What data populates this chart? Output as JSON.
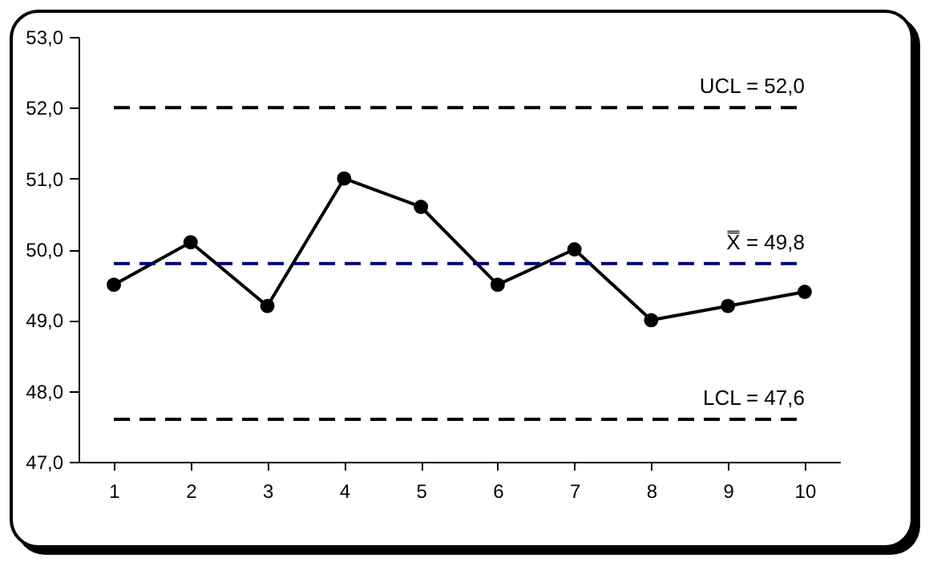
{
  "chart_data": {
    "type": "line",
    "categories": [
      "1",
      "2",
      "3",
      "4",
      "5",
      "6",
      "7",
      "8",
      "9",
      "10"
    ],
    "series": [
      {
        "color": "#000000",
        "values": [
          49.5,
          50.1,
          49.2,
          51.0,
          50.6,
          49.5,
          50.0,
          49.0,
          49.2,
          49.4
        ]
      }
    ],
    "ylim": [
      47,
      53
    ],
    "yticks": [
      {
        "value": 47,
        "label": "47,0"
      },
      {
        "value": 48,
        "label": "48,0"
      },
      {
        "value": 49,
        "label": "49,0"
      },
      {
        "value": 50,
        "label": "50,0"
      },
      {
        "value": 51,
        "label": "51,0"
      },
      {
        "value": 52,
        "label": "52,0"
      },
      {
        "value": 53,
        "label": "53,0"
      }
    ],
    "marker": "circle",
    "line_style": "solid",
    "grid": false,
    "ref_lines": [
      {
        "axis": "y",
        "value": 52.0,
        "label": "UCL = 52,0",
        "color": "#000000",
        "line_style": "dashed"
      },
      {
        "axis": "y",
        "value": 49.8,
        "label": "X̿ = 49,8",
        "color": "#000080",
        "line_style": "dashed"
      },
      {
        "axis": "y",
        "value": 47.6,
        "label": "LCL = 47,6",
        "color": "#000000",
        "line_style": "dashed"
      }
    ]
  }
}
